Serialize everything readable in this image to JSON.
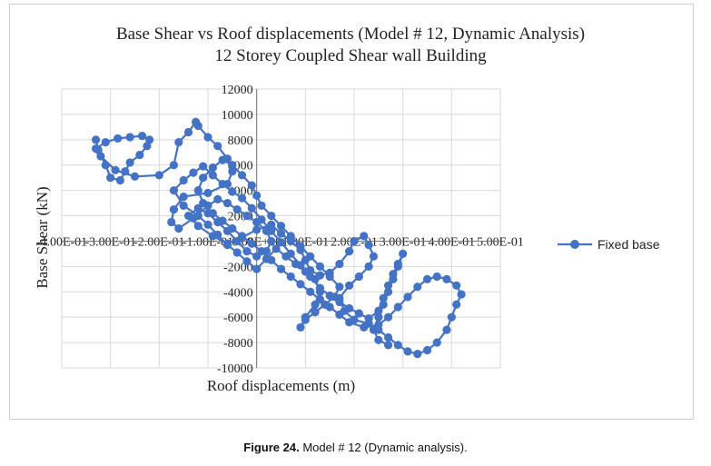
{
  "chart_data": {
    "type": "line",
    "title": "Base Shear vs Roof displacements (Model # 12, Dynamic Analysis)",
    "subtitle": "12 Storey Coupled Shear wall Building",
    "xlabel": "Roof displacements (m)",
    "ylabel": "Base Shear (kN)",
    "xlim": [
      -0.4,
      0.5
    ],
    "ylim": [
      -10000,
      12000
    ],
    "x_tick_labels": [
      "-4.00E-01",
      "-3.00E-01",
      "-2.00E-01",
      "-1.00E-01",
      "0.00E+00",
      "1.00E-01",
      "2.00E-01",
      "3.00E-01",
      "4.00E-01",
      "5.00E-01"
    ],
    "y_ticks": [
      -10000,
      -8000,
      -6000,
      -4000,
      -2000,
      0,
      2000,
      4000,
      6000,
      8000,
      10000,
      12000
    ],
    "grid": true,
    "legend_position": "right",
    "series": [
      {
        "name": "Fixed base",
        "color": "#4472c4",
        "points": [
          [
            -0.33,
            8000
          ],
          [
            -0.325,
            7200
          ],
          [
            -0.31,
            6000
          ],
          [
            -0.3,
            5000
          ],
          [
            -0.28,
            4800
          ],
          [
            -0.27,
            5500
          ],
          [
            -0.26,
            6200
          ],
          [
            -0.24,
            6800
          ],
          [
            -0.225,
            7500
          ],
          [
            -0.22,
            8000
          ],
          [
            -0.235,
            8300
          ],
          [
            -0.26,
            8200
          ],
          [
            -0.285,
            8100
          ],
          [
            -0.31,
            7800
          ],
          [
            -0.33,
            7300
          ],
          [
            -0.32,
            6700
          ],
          [
            -0.29,
            5600
          ],
          [
            -0.25,
            5100
          ],
          [
            -0.2,
            5200
          ],
          [
            -0.17,
            6000
          ],
          [
            -0.16,
            7800
          ],
          [
            -0.14,
            8600
          ],
          [
            -0.125,
            9400
          ],
          [
            -0.12,
            9100
          ],
          [
            -0.1,
            8200
          ],
          [
            -0.08,
            7500
          ],
          [
            -0.06,
            6500
          ],
          [
            -0.05,
            5500
          ],
          [
            -0.06,
            4500
          ],
          [
            -0.1,
            3800
          ],
          [
            -0.15,
            3500
          ],
          [
            -0.17,
            2500
          ],
          [
            -0.175,
            1500
          ],
          [
            -0.16,
            1000
          ],
          [
            -0.13,
            1800
          ],
          [
            -0.1,
            2800
          ],
          [
            -0.08,
            3300
          ],
          [
            -0.06,
            3000
          ],
          [
            -0.04,
            2500
          ],
          [
            -0.02,
            2000
          ],
          [
            0.0,
            1500
          ],
          [
            0.02,
            800
          ],
          [
            0.03,
            0
          ],
          [
            0.02,
            -800
          ],
          [
            0.0,
            -1200
          ],
          [
            -0.02,
            -800
          ],
          [
            -0.04,
            0
          ],
          [
            -0.06,
            800
          ],
          [
            -0.08,
            1500
          ],
          [
            -0.1,
            2200
          ],
          [
            -0.12,
            2600
          ],
          [
            -0.14,
            2000
          ],
          [
            -0.12,
            1200
          ],
          [
            -0.09,
            400
          ],
          [
            -0.06,
            -200
          ],
          [
            -0.03,
            300
          ],
          [
            0.0,
            900
          ],
          [
            0.03,
            1300
          ],
          [
            0.05,
            600
          ],
          [
            0.07,
            0
          ],
          [
            0.09,
            -700
          ],
          [
            0.1,
            -1500
          ],
          [
            0.11,
            -2300
          ],
          [
            0.13,
            -2700
          ],
          [
            0.15,
            -2500
          ],
          [
            0.17,
            -1800
          ],
          [
            0.19,
            -800
          ],
          [
            0.2,
            0
          ],
          [
            0.22,
            400
          ],
          [
            0.23,
            -300
          ],
          [
            0.24,
            -1200
          ],
          [
            0.23,
            -2000
          ],
          [
            0.21,
            -2800
          ],
          [
            0.19,
            -3500
          ],
          [
            0.17,
            -4500
          ],
          [
            0.18,
            -5500
          ],
          [
            0.2,
            -6200
          ],
          [
            0.23,
            -6500
          ],
          [
            0.25,
            -7000
          ],
          [
            0.27,
            -7600
          ],
          [
            0.29,
            -8200
          ],
          [
            0.31,
            -8700
          ],
          [
            0.33,
            -8900
          ],
          [
            0.35,
            -8600
          ],
          [
            0.37,
            -8000
          ],
          [
            0.39,
            -7000
          ],
          [
            0.4,
            -6000
          ],
          [
            0.41,
            -5000
          ],
          [
            0.42,
            -4200
          ],
          [
            0.41,
            -3500
          ],
          [
            0.39,
            -3000
          ],
          [
            0.37,
            -2800
          ],
          [
            0.35,
            -3000
          ],
          [
            0.33,
            -3600
          ],
          [
            0.31,
            -4400
          ],
          [
            0.29,
            -5200
          ],
          [
            0.27,
            -6000
          ],
          [
            0.25,
            -6600
          ],
          [
            0.22,
            -6800
          ],
          [
            0.19,
            -6400
          ],
          [
            0.17,
            -5800
          ],
          [
            0.15,
            -5200
          ],
          [
            0.13,
            -4600
          ],
          [
            0.11,
            -4000
          ],
          [
            0.09,
            -3400
          ],
          [
            0.07,
            -2800
          ],
          [
            0.05,
            -2200
          ],
          [
            0.03,
            -1500
          ],
          [
            0.01,
            -800
          ],
          [
            -0.01,
            -200
          ],
          [
            -0.03,
            400
          ],
          [
            -0.05,
            1000
          ],
          [
            -0.07,
            1600
          ],
          [
            -0.09,
            2200
          ],
          [
            -0.11,
            3000
          ],
          [
            -0.12,
            4000
          ],
          [
            -0.11,
            5000
          ],
          [
            -0.09,
            5800
          ],
          [
            -0.07,
            6400
          ],
          [
            -0.05,
            6000
          ],
          [
            -0.03,
            5200
          ],
          [
            -0.01,
            4400
          ],
          [
            0.0,
            3600
          ],
          [
            0.01,
            2800
          ],
          [
            0.03,
            2000
          ],
          [
            0.05,
            1200
          ],
          [
            0.07,
            400
          ],
          [
            0.09,
            -400
          ],
          [
            0.11,
            -1200
          ],
          [
            0.13,
            -2000
          ],
          [
            0.15,
            -2800
          ],
          [
            0.17,
            -3600
          ],
          [
            0.16,
            -4400
          ],
          [
            0.14,
            -5000
          ],
          [
            0.12,
            -5600
          ],
          [
            0.1,
            -6200
          ],
          [
            0.09,
            -6800
          ],
          [
            0.1,
            -6000
          ],
          [
            0.12,
            -5000
          ],
          [
            0.13,
            -4000
          ],
          [
            0.12,
            -3000
          ],
          [
            0.1,
            -2400
          ],
          [
            0.08,
            -1800
          ],
          [
            0.06,
            -1200
          ],
          [
            0.04,
            -600
          ],
          [
            0.02,
            -1400
          ],
          [
            0.0,
            -2200
          ],
          [
            -0.02,
            -1600
          ],
          [
            -0.04,
            -900
          ],
          [
            -0.06,
            -300
          ],
          [
            -0.08,
            500
          ],
          [
            -0.1,
            1300
          ],
          [
            -0.12,
            2000
          ],
          [
            -0.15,
            2800
          ],
          [
            -0.17,
            4000
          ],
          [
            -0.15,
            4800
          ],
          [
            -0.13,
            5400
          ],
          [
            -0.11,
            5900
          ],
          [
            -0.09,
            5200
          ],
          [
            -0.07,
            4500
          ],
          [
            -0.05,
            3900
          ],
          [
            -0.03,
            3400
          ],
          [
            -0.01,
            2600
          ],
          [
            0.01,
            1700
          ],
          [
            0.03,
            800
          ],
          [
            0.05,
            -100
          ],
          [
            0.07,
            -1000
          ],
          [
            0.09,
            -1900
          ],
          [
            0.11,
            -2800
          ],
          [
            0.13,
            -3700
          ],
          [
            0.15,
            -4300
          ],
          [
            0.17,
            -4800
          ],
          [
            0.19,
            -5300
          ],
          [
            0.21,
            -5700
          ],
          [
            0.23,
            -6100
          ],
          [
            0.25,
            -5500
          ],
          [
            0.26,
            -4500
          ],
          [
            0.27,
            -3500
          ],
          [
            0.28,
            -2600
          ],
          [
            0.29,
            -1800
          ],
          [
            0.3,
            -1000
          ],
          [
            0.29,
            -2000
          ],
          [
            0.28,
            -3000
          ],
          [
            0.27,
            -4000
          ],
          [
            0.26,
            -5000
          ],
          [
            0.25,
            -6000
          ],
          [
            0.24,
            -7000
          ],
          [
            0.25,
            -7800
          ],
          [
            0.27,
            -8200
          ]
        ]
      }
    ]
  },
  "caption": {
    "label": "Figure 24.",
    "text": "Model # 12 (Dynamic analysis)."
  }
}
